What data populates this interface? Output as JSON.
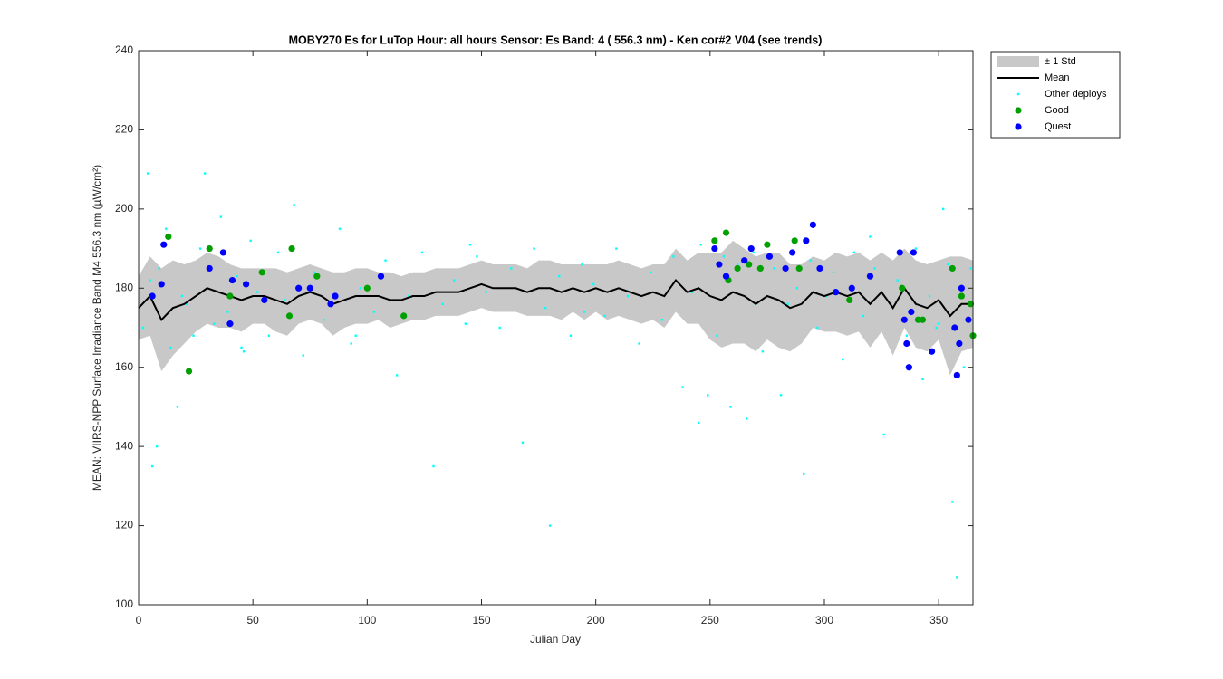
{
  "chart_data": {
    "type": "scatter",
    "title": "MOBY270   Es for LuTop  Hour: all hours  Sensor: Es Band: 4 ( 556.3 nm)  - Ken cor#2 V04 (see trends)",
    "x_label": "Julian Day",
    "y_label": "MEAN: VIIRS-NPP Surface Irradiance Band M4 556.3 nm (µW/cm²)",
    "xlim": [
      0,
      365
    ],
    "ylim": [
      100,
      240
    ],
    "xticks": [
      0,
      50,
      100,
      150,
      200,
      250,
      300,
      350
    ],
    "yticks": [
      100,
      120,
      140,
      160,
      180,
      200,
      220,
      240
    ],
    "legend_position": "outside-top-right",
    "x": [
      0,
      5,
      10,
      15,
      20,
      25,
      30,
      35,
      40,
      45,
      50,
      55,
      60,
      65,
      70,
      75,
      80,
      85,
      90,
      95,
      100,
      105,
      110,
      115,
      120,
      125,
      130,
      135,
      140,
      145,
      150,
      155,
      160,
      165,
      170,
      175,
      180,
      185,
      190,
      195,
      200,
      205,
      210,
      215,
      220,
      225,
      230,
      235,
      240,
      245,
      250,
      255,
      260,
      265,
      270,
      275,
      280,
      285,
      290,
      295,
      300,
      305,
      310,
      315,
      320,
      325,
      330,
      335,
      340,
      345,
      350,
      355,
      360,
      365
    ],
    "series": [
      {
        "name": "± 1 Std",
        "kind": "band",
        "color": "#c8c8c8",
        "upper": [
          183,
          188,
          185,
          187,
          186,
          187,
          189,
          188,
          186,
          185,
          185,
          185,
          185,
          184,
          185,
          186,
          185,
          184,
          184,
          185,
          185,
          184,
          184,
          183,
          184,
          184,
          185,
          185,
          185,
          186,
          187,
          186,
          186,
          186,
          185,
          187,
          187,
          186,
          186,
          186,
          186,
          186,
          187,
          186,
          185,
          186,
          186,
          190,
          187,
          189,
          189,
          189,
          192,
          190,
          188,
          189,
          189,
          186,
          186,
          188,
          187,
          189,
          188,
          189,
          187,
          189,
          187,
          190,
          187,
          186,
          187,
          188,
          188,
          187
        ],
        "lower": [
          167,
          168,
          159,
          163,
          166,
          169,
          171,
          170,
          170,
          169,
          171,
          171,
          169,
          168,
          171,
          172,
          171,
          168,
          170,
          171,
          171,
          172,
          170,
          171,
          172,
          172,
          173,
          173,
          173,
          174,
          175,
          174,
          174,
          174,
          173,
          173,
          173,
          172,
          174,
          172,
          174,
          172,
          173,
          172,
          171,
          172,
          170,
          174,
          171,
          171,
          167,
          165,
          166,
          166,
          164,
          167,
          165,
          164,
          166,
          170,
          169,
          169,
          168,
          169,
          165,
          169,
          163,
          170,
          165,
          164,
          167,
          158,
          164,
          165
        ]
      },
      {
        "name": "Mean",
        "kind": "line",
        "color": "#000000",
        "values": [
          175,
          178,
          172,
          175,
          176,
          178,
          180,
          179,
          178,
          177,
          178,
          178,
          177,
          176,
          178,
          179,
          178,
          176,
          177,
          178,
          178,
          178,
          177,
          177,
          178,
          178,
          179,
          179,
          179,
          180,
          181,
          180,
          180,
          180,
          179,
          180,
          180,
          179,
          180,
          179,
          180,
          179,
          180,
          179,
          178,
          179,
          178,
          182,
          179,
          180,
          178,
          177,
          179,
          178,
          176,
          178,
          177,
          175,
          176,
          179,
          178,
          179,
          178,
          179,
          176,
          179,
          175,
          180,
          176,
          175,
          177,
          173,
          176,
          176
        ]
      },
      {
        "name": "Other deploys",
        "kind": "points",
        "color": "#00ffff",
        "x": [
          2,
          4,
          6,
          8,
          9,
          12,
          14,
          17,
          19,
          21,
          24,
          27,
          29,
          33,
          36,
          39,
          43,
          46,
          49,
          52,
          57,
          61,
          64,
          68,
          72,
          77,
          81,
          88,
          93,
          97,
          103,
          108,
          113,
          118,
          124,
          129,
          133,
          138,
          143,
          148,
          152,
          158,
          163,
          168,
          173,
          178,
          180,
          184,
          189,
          194,
          199,
          204,
          209,
          214,
          219,
          224,
          229,
          234,
          238,
          242,
          246,
          249,
          253,
          256,
          259,
          262,
          266,
          269,
          273,
          278,
          281,
          284,
          288,
          291,
          294,
          297,
          301,
          304,
          308,
          313,
          317,
          322,
          326,
          329,
          332,
          336,
          340,
          343,
          346,
          349,
          352,
          354,
          356,
          358,
          361,
          363,
          364,
          5,
          45,
          95,
          145,
          195,
          245,
          270,
          320,
          350
        ],
        "values": [
          170,
          209,
          135,
          140,
          185,
          195,
          165,
          150,
          178,
          176,
          168,
          190,
          209,
          171,
          198,
          174,
          183,
          164,
          192,
          179,
          168,
          189,
          177,
          201,
          163,
          184,
          172,
          195,
          166,
          180,
          174,
          187,
          158,
          178,
          189,
          135,
          176,
          182,
          171,
          188,
          179,
          170,
          185,
          141,
          190,
          175,
          120,
          183,
          168,
          186,
          181,
          173,
          190,
          178,
          166,
          184,
          172,
          188,
          155,
          179,
          191,
          153,
          168,
          188,
          150,
          186,
          147,
          189,
          164,
          185,
          153,
          176,
          180,
          133,
          187,
          170,
          178,
          184,
          162,
          189,
          173,
          185,
          143,
          176,
          182,
          168,
          190,
          157,
          178,
          170,
          200,
          186,
          126,
          107,
          160,
          176,
          185,
          182,
          165,
          168,
          191,
          174,
          146,
          176,
          193,
          171
        ]
      },
      {
        "name": "Good",
        "kind": "points",
        "color": "#00a000",
        "x": [
          13,
          22,
          31,
          40,
          54,
          66,
          67,
          78,
          100,
          116,
          252,
          257,
          258,
          262,
          267,
          272,
          275,
          287,
          289,
          311,
          334,
          341,
          343,
          356,
          360,
          364,
          365
        ],
        "values": [
          193,
          159,
          190,
          178,
          184,
          173,
          190,
          183,
          180,
          173,
          192,
          194,
          182,
          185,
          186,
          185,
          191,
          192,
          185,
          177,
          180,
          172,
          172,
          185,
          178,
          176,
          168
        ]
      },
      {
        "name": "Quest",
        "kind": "points",
        "color": "#0000ff",
        "x": [
          6,
          10,
          11,
          31,
          37,
          40,
          41,
          47,
          55,
          70,
          75,
          84,
          86,
          106,
          252,
          254,
          257,
          265,
          268,
          276,
          283,
          286,
          292,
          295,
          298,
          305,
          312,
          320,
          333,
          335,
          336,
          337,
          338,
          339,
          347,
          357,
          358,
          359,
          360,
          363
        ],
        "values": [
          178,
          181,
          191,
          185,
          189,
          171,
          182,
          181,
          177,
          180,
          180,
          176,
          178,
          183,
          190,
          186,
          183,
          187,
          190,
          188,
          185,
          189,
          192,
          196,
          185,
          179,
          180,
          183,
          189,
          172,
          166,
          160,
          174,
          189,
          164,
          170,
          158,
          166,
          180,
          172
        ]
      }
    ]
  }
}
